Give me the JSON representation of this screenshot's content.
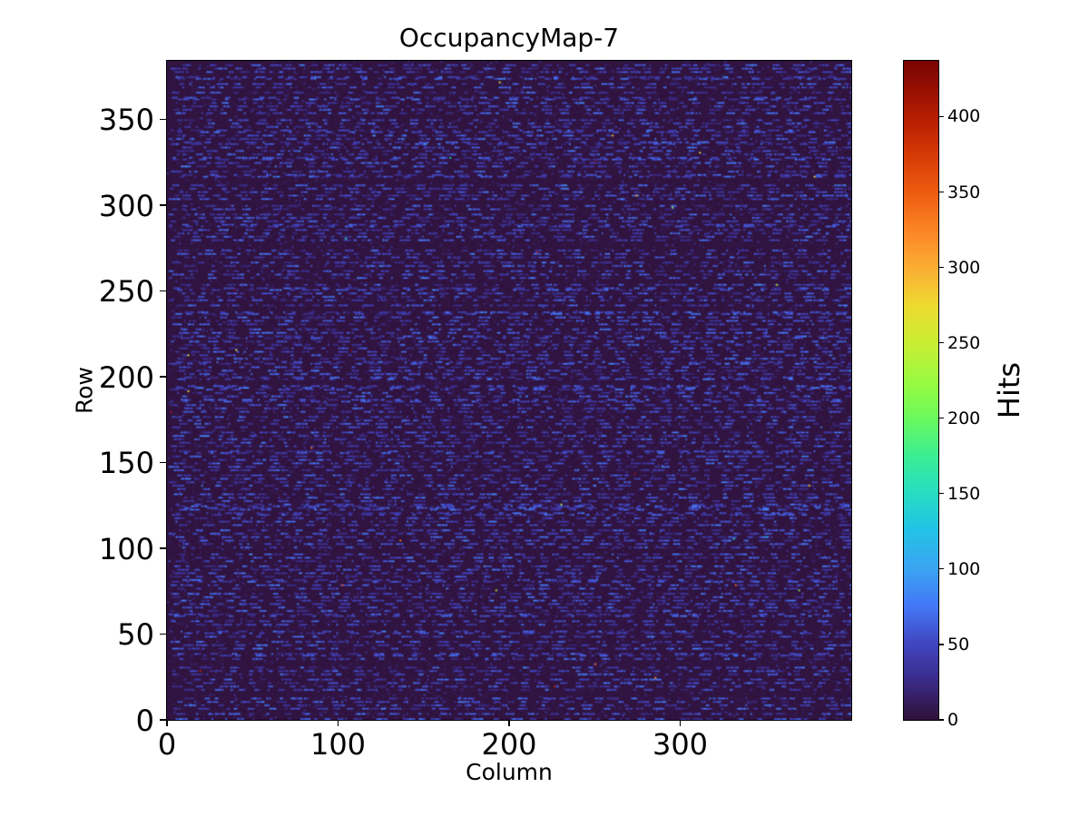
{
  "chart_data": {
    "type": "heatmap",
    "title": "OccupancyMap-7",
    "xlabel": "Column",
    "ylabel": "Row",
    "colorbar_label": "Hits",
    "ncols": 400,
    "nrows": 384,
    "xlim": [
      0,
      400
    ],
    "ylim": [
      0,
      384
    ],
    "vmin": 0,
    "vmax": 437,
    "xticks": [
      0,
      100,
      200,
      300
    ],
    "yticks": [
      0,
      50,
      100,
      150,
      200,
      250,
      300,
      350
    ],
    "colorbar_ticks": [
      0,
      50,
      100,
      150,
      200,
      250,
      300,
      350,
      400
    ],
    "grid": false,
    "colormap": "turbo",
    "colormap_stops": [
      [
        0.0,
        "#30123b"
      ],
      [
        0.06,
        "#3a2c8a"
      ],
      [
        0.114,
        "#4146c0"
      ],
      [
        0.17,
        "#4476f5"
      ],
      [
        0.229,
        "#3aa5f3"
      ],
      [
        0.29,
        "#22c4e5"
      ],
      [
        0.343,
        "#27ddc3"
      ],
      [
        0.4,
        "#3bee94"
      ],
      [
        0.458,
        "#6cf95c"
      ],
      [
        0.51,
        "#97fb43"
      ],
      [
        0.572,
        "#c9ee33"
      ],
      [
        0.63,
        "#eeda2f"
      ],
      [
        0.686,
        "#fbae34"
      ],
      [
        0.74,
        "#fd8827"
      ],
      [
        0.801,
        "#ee5c10"
      ],
      [
        0.86,
        "#d63a06"
      ],
      [
        0.915,
        "#b61d02"
      ],
      [
        1.0,
        "#7a0403"
      ]
    ],
    "pattern": {
      "description": "Pixel-detector occupancy: near-zero dark background, ~45% of rows carry horizontal dashed runs of moderate hits (blue), plus rare isolated hot pixels up to vmax.",
      "seed": 7,
      "dash_row_prob_after_gap": 0.65,
      "dash_row_prob_after_dash": 0.18,
      "dash_gap_cells_max": 10,
      "dash_run_cells_max": 7,
      "dash_value_range": [
        22,
        64
      ],
      "sparse_pixel_prob": 0.025,
      "sparse_value_range": [
        12,
        38
      ],
      "background_value_max": 8,
      "hot_pixel_probability": 0.00015,
      "hot_pixel_value_range": [
        120,
        437
      ]
    }
  }
}
